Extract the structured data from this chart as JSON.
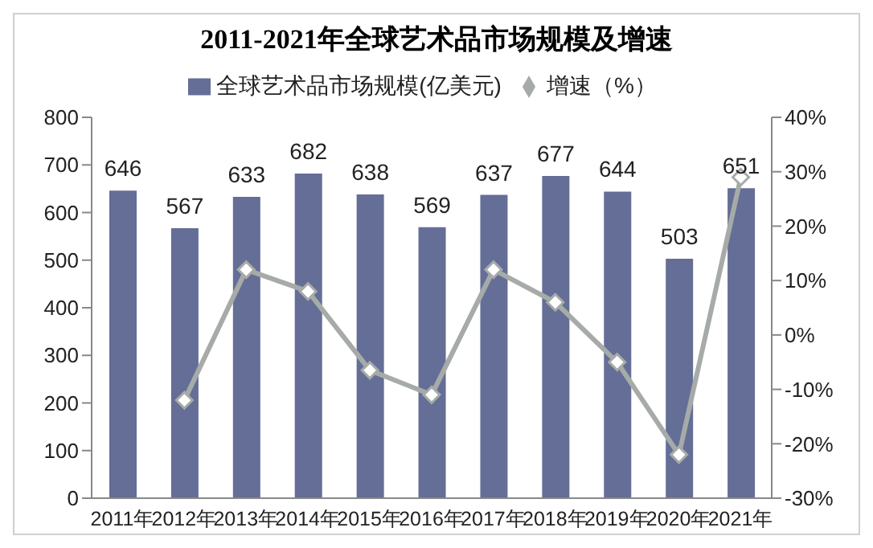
{
  "chart_data": {
    "type": "bar",
    "title": "2011-2021年全球艺术品市场规模及增速",
    "categories": [
      "2011年",
      "2012年",
      "2013年",
      "2014年",
      "2015年",
      "2016年",
      "2017年",
      "2018年",
      "2019年",
      "2020年",
      "2021年"
    ],
    "series": [
      {
        "name": "全球艺术品市场规模(亿美元)",
        "color": "#646e96",
        "values": [
          646,
          567,
          633,
          682,
          638,
          569,
          637,
          677,
          644,
          503,
          651
        ],
        "value_labels": [
          "646",
          "567",
          "633",
          "682",
          "638",
          "569",
          "637",
          "677",
          "644",
          "503",
          "651"
        ]
      },
      {
        "name": "增速（%）",
        "type": "line",
        "axis": "y2",
        "color": "#a6aba8",
        "marker": "diamond",
        "values": [
          null,
          -12,
          12,
          8,
          -6.5,
          -11,
          12,
          6,
          -5,
          -22,
          29
        ]
      }
    ],
    "ylim": [
      0,
      800
    ],
    "yticks": [
      0,
      100,
      200,
      300,
      400,
      500,
      600,
      700,
      800
    ],
    "y2lim": [
      -30,
      40
    ],
    "y2ticks": [
      {
        "value": -30,
        "label": "-30%"
      },
      {
        "value": -20,
        "label": "-20%"
      },
      {
        "value": -10,
        "label": "-10%"
      },
      {
        "value": 0,
        "label": "0%"
      },
      {
        "value": 10,
        "label": "10%"
      },
      {
        "value": 20,
        "label": "20%"
      },
      {
        "value": 30,
        "label": "30%"
      },
      {
        "value": 40,
        "label": "40%"
      }
    ],
    "grid": false,
    "legend": "top"
  }
}
